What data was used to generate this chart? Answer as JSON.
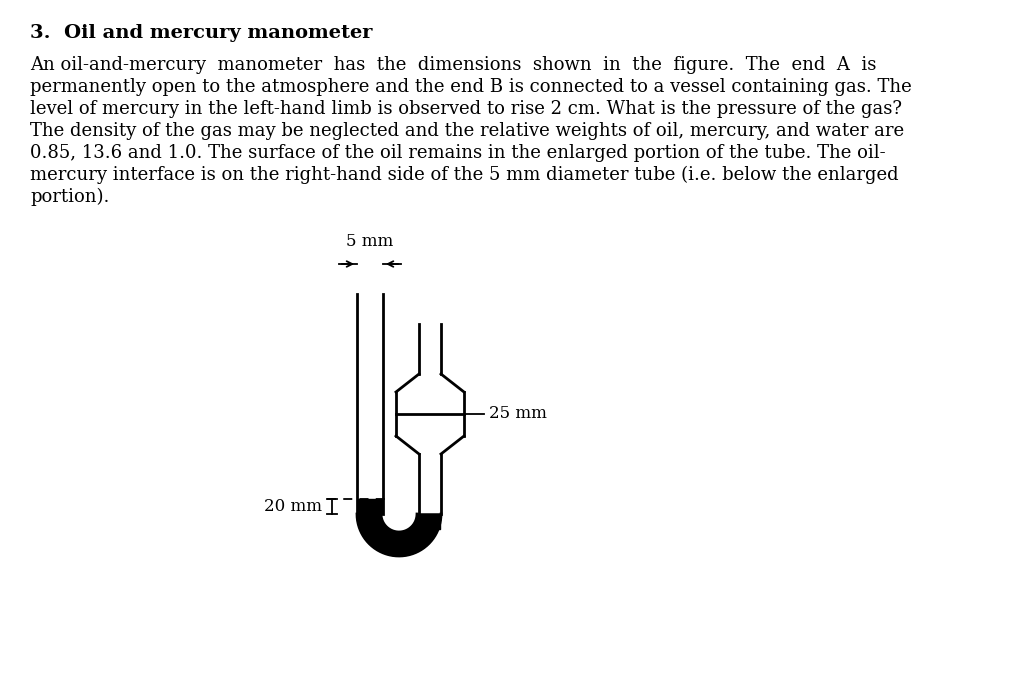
{
  "title": "3.  Oil and mercury manometer",
  "paragraph_lines": [
    "An oil-and-mercury  manometer  has  the  dimensions  shown  in  the  figure.  The  end  A  is",
    "permanently open to the atmosphere and the end B is connected to a vessel containing gas. The",
    "level of mercury in the left-hand limb is observed to rise 2 cm. What is the pressure of the gas?",
    "The density of the gas may be neglected and the relative weights of oil, mercury, and water are",
    "0.85, 13.6 and 1.0. The surface of the oil remains in the enlarged portion of the tube. The oil-",
    "mercury interface is on the right-hand side of the 5 mm diameter tube (i.e. below the enlarged",
    "portion)."
  ],
  "label_5mm": "5 mm",
  "label_20mm": "20 mm",
  "label_25mm": "25 mm",
  "bg_color": "#ffffff",
  "text_color": "#000000",
  "line_color": "#000000",
  "title_fontsize": 14,
  "body_fontsize": 13
}
